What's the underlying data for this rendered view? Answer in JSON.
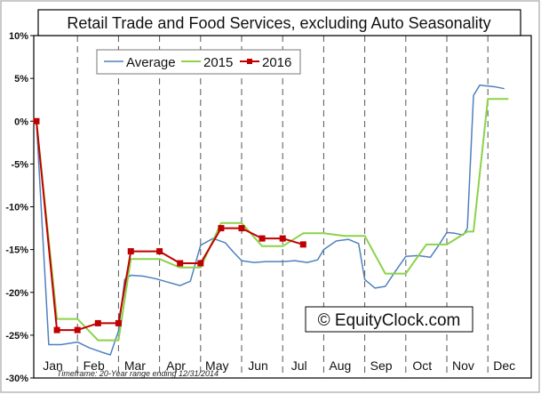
{
  "chart_data": {
    "type": "line",
    "title": "Retail Trade and Food Services, excluding Auto Seasonality",
    "xlabel": "",
    "ylabel": "",
    "x_categories": [
      "Jan",
      "Feb",
      "Mar",
      "Apr",
      "May",
      "Jun",
      "Jul",
      "Aug",
      "Sep",
      "Oct",
      "Nov",
      "Dec"
    ],
    "x_range": [
      0,
      12
    ],
    "ylim": [
      -30,
      10
    ],
    "y_ticks": [
      "10%",
      "5%",
      "0%",
      "-5%",
      "-10%",
      "-15%",
      "-20%",
      "-25%",
      "-30%"
    ],
    "y_tick_values": [
      10,
      5,
      0,
      -5,
      -10,
      -15,
      -20,
      -25,
      -30
    ],
    "grid": "vertical dashed lines between months",
    "legend_position": "top-left",
    "series": [
      {
        "name": "Average",
        "color": "#4f81bd",
        "style": "line",
        "points": [
          [
            0,
            0
          ],
          [
            0.3,
            -26.1
          ],
          [
            0.6,
            -26.1
          ],
          [
            1.0,
            -25.8
          ],
          [
            1.3,
            -26.5
          ],
          [
            1.6,
            -27.0
          ],
          [
            1.8,
            -27.3
          ],
          [
            2.0,
            -24.5
          ],
          [
            2.15,
            -18.5
          ],
          [
            2.3,
            -18.0
          ],
          [
            2.6,
            -18.1
          ],
          [
            2.9,
            -18.4
          ],
          [
            3.2,
            -18.8
          ],
          [
            3.5,
            -19.2
          ],
          [
            3.75,
            -18.7
          ],
          [
            4.0,
            -14.5
          ],
          [
            4.3,
            -13.7
          ],
          [
            4.6,
            -14.2
          ],
          [
            4.8,
            -15.3
          ],
          [
            5.0,
            -16.3
          ],
          [
            5.3,
            -16.5
          ],
          [
            5.6,
            -16.4
          ],
          [
            6.0,
            -16.4
          ],
          [
            6.3,
            -16.3
          ],
          [
            6.6,
            -16.5
          ],
          [
            6.85,
            -16.2
          ],
          [
            7.0,
            -15.0
          ],
          [
            7.3,
            -14.0
          ],
          [
            7.6,
            -13.8
          ],
          [
            7.85,
            -14.3
          ],
          [
            8.0,
            -18.5
          ],
          [
            8.25,
            -19.5
          ],
          [
            8.5,
            -19.3
          ],
          [
            8.75,
            -17.5
          ],
          [
            9.0,
            -15.8
          ],
          [
            9.3,
            -15.7
          ],
          [
            9.6,
            -15.9
          ],
          [
            9.8,
            -14.5
          ],
          [
            10.0,
            -13.0
          ],
          [
            10.2,
            -13.1
          ],
          [
            10.4,
            -13.3
          ],
          [
            10.5,
            -12.5
          ],
          [
            10.65,
            3.0
          ],
          [
            10.8,
            4.2
          ],
          [
            11.0,
            4.1
          ],
          [
            11.2,
            4.0
          ],
          [
            11.4,
            3.8
          ]
        ]
      },
      {
        "name": "2015",
        "color": "#8cd24a",
        "style": "line",
        "points": [
          [
            0,
            0
          ],
          [
            0.5,
            -23.1
          ],
          [
            1.0,
            -23.1
          ],
          [
            1.5,
            -25.6
          ],
          [
            2.0,
            -25.6
          ],
          [
            2.3,
            -16.1
          ],
          [
            3.0,
            -16.1
          ],
          [
            3.5,
            -17.1
          ],
          [
            4.0,
            -17.1
          ],
          [
            4.5,
            -11.9
          ],
          [
            5.0,
            -11.9
          ],
          [
            5.5,
            -14.6
          ],
          [
            6.0,
            -14.6
          ],
          [
            6.5,
            -13.1
          ],
          [
            7.0,
            -13.1
          ],
          [
            7.5,
            -13.4
          ],
          [
            8.0,
            -13.4
          ],
          [
            8.5,
            -17.8
          ],
          [
            9.0,
            -17.8
          ],
          [
            9.5,
            -14.4
          ],
          [
            10.0,
            -14.4
          ],
          [
            10.5,
            -12.9
          ],
          [
            10.65,
            -12.9
          ],
          [
            11.0,
            2.6
          ],
          [
            11.5,
            2.6
          ]
        ]
      },
      {
        "name": "2016",
        "color": "#c00000",
        "style": "line-markers",
        "points": [
          [
            0,
            0
          ],
          [
            0.5,
            -24.4
          ],
          [
            1.0,
            -24.4
          ],
          [
            1.5,
            -23.6
          ],
          [
            2.0,
            -23.6
          ],
          [
            2.3,
            -15.2
          ],
          [
            3.0,
            -15.2
          ],
          [
            3.5,
            -16.6
          ],
          [
            4.0,
            -16.6
          ],
          [
            4.5,
            -12.5
          ],
          [
            5.0,
            -12.5
          ],
          [
            5.5,
            -13.7
          ],
          [
            6.0,
            -13.7
          ],
          [
            6.5,
            -14.4
          ]
        ]
      }
    ],
    "annotations": {
      "watermark": "© EquityClock.com",
      "footnote": "Timeframe: 20-Year range ending 12/31/2014"
    }
  }
}
